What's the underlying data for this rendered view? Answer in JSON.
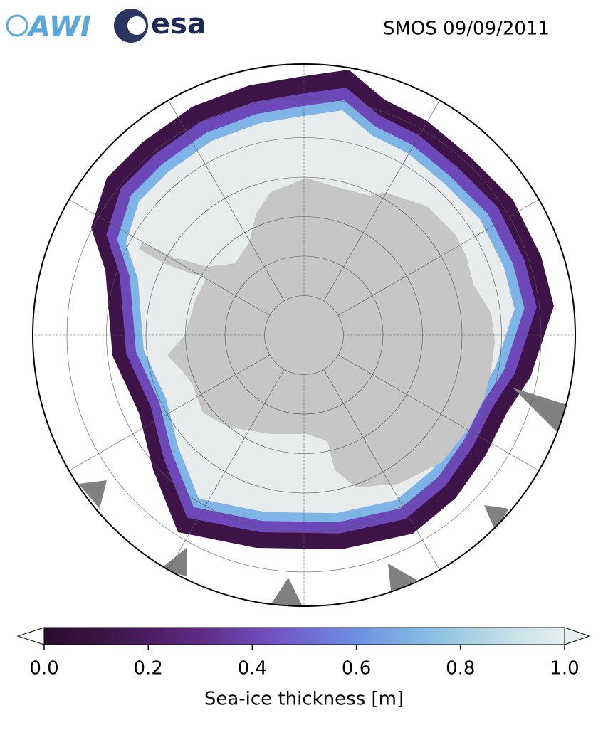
{
  "header": {
    "logos": [
      "AWI",
      "esa"
    ],
    "title": "SMOS 09/09/2011"
  },
  "colorbar": {
    "label": "Sea-ice thickness [m]",
    "lim": [
      0,
      1
    ],
    "ticks": [
      {
        "value": 0,
        "label": "0.0"
      },
      {
        "value": 0.2,
        "label": "0.2"
      },
      {
        "value": 0.4,
        "label": "0.4"
      },
      {
        "value": 0.6,
        "label": "0.6"
      },
      {
        "value": 0.8,
        "label": "0.8"
      },
      {
        "value": 1,
        "label": "1.0"
      }
    ]
  }
}
